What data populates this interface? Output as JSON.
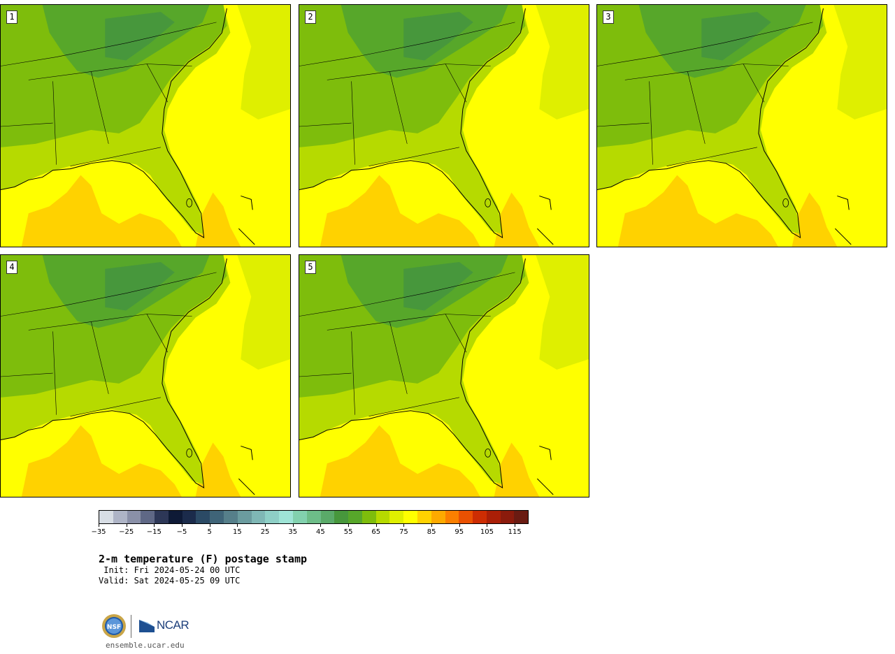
{
  "panels": [
    {
      "label": "1"
    },
    {
      "label": "2"
    },
    {
      "label": "3"
    },
    {
      "label": "4"
    },
    {
      "label": "5"
    }
  ],
  "colorbar": {
    "colors": [
      "#d7dde4",
      "#aeb4c6",
      "#8a90a8",
      "#5f6886",
      "#2d3757",
      "#0e1a36",
      "#1b2b4b",
      "#2b4a65",
      "#3f6478",
      "#567f8a",
      "#6b9c9f",
      "#7fb7b5",
      "#8ecfc6",
      "#9ee4d6",
      "#82d1ae",
      "#6dbd88",
      "#5aaa69",
      "#47973c",
      "#57a72a",
      "#7ebd0c",
      "#b6da00",
      "#dfef00",
      "#ffff00",
      "#ffd200",
      "#fdaa00",
      "#fb7f00",
      "#ea5102",
      "#cd2d03",
      "#aa1f07",
      "#8b1b0c",
      "#6a1b12"
    ],
    "ticks": [
      "−35",
      "−25",
      "−15",
      "−5",
      "5",
      "15",
      "25",
      "35",
      "45",
      "55",
      "65",
      "75",
      "85",
      "95",
      "105",
      "115"
    ]
  },
  "title": "2-m temperature (F) postage stamp",
  "init": " Init: Fri 2024-05-24 00 UTC",
  "valid": "Valid: Sat 2024-05-25 09 UTC",
  "url": "ensemble.ucar.edu",
  "logos": {
    "nsf": "NSF",
    "ncar": "NCAR"
  }
}
